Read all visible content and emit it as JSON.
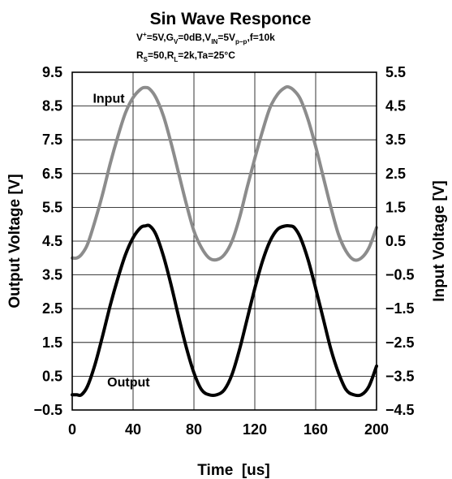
{
  "chart_data": {
    "type": "line",
    "title": "Sin Wave Responce",
    "conditions_line1": {
      "v": "V",
      "v_sup": "+",
      "v_rest": "=5V,G",
      "gv_sub": "V",
      "gv_rest": "=0dB,V",
      "vin_sub": "IN",
      "vin_rest": "=5V",
      "pp_sub": "p−p",
      "tail": ",f=10k"
    },
    "conditions_line2": {
      "r": "R",
      "rs_sub": "S",
      "rs_rest": "=50,R",
      "rl_sub": "L",
      "tail": "=2k,Ta=25°C"
    },
    "xlabel": "Time  [us]",
    "ylabel_left": "Output Voltage [V]",
    "ylabel_right": "Input Voltage [V]",
    "xlim": [
      0,
      200
    ],
    "ylim_left": [
      -0.5,
      9.5
    ],
    "ylim_right": [
      -4.5,
      5.5
    ],
    "x_ticks": [
      "0",
      "40",
      "80",
      "120",
      "160",
      "200"
    ],
    "y_ticks_left": [
      "9.5",
      "8.5",
      "7.5",
      "6.5",
      "5.5",
      "4.5",
      "3.5",
      "2.5",
      "1.5",
      "0.5",
      "−0.5"
    ],
    "y_ticks_right": [
      "5.5",
      "4.5",
      "3.5",
      "2.5",
      "1.5",
      "0.5",
      "−0.5",
      "−1.5",
      "−2.5",
      "−3.5",
      "−4.5"
    ],
    "grid": true,
    "series": [
      {
        "name": "Input",
        "axis": "left",
        "color": "#8c8c8c",
        "x": [
          0,
          3,
          6,
          10,
          15,
          20,
          25,
          30,
          35,
          40,
          45,
          48,
          51,
          55,
          60,
          65,
          70,
          75,
          80,
          85,
          90,
          95,
          100,
          105,
          110,
          115,
          120,
          125,
          130,
          135,
          140,
          143,
          146,
          150,
          155,
          160,
          165,
          170,
          175,
          180,
          185,
          190,
          195,
          200
        ],
        "values": [
          4.0,
          4.0,
          4.1,
          4.4,
          5.1,
          5.9,
          6.8,
          7.6,
          8.3,
          8.75,
          9.0,
          9.05,
          9.0,
          8.75,
          8.2,
          7.4,
          6.5,
          5.6,
          4.8,
          4.3,
          4.0,
          3.95,
          4.1,
          4.5,
          5.2,
          6.1,
          6.95,
          7.75,
          8.45,
          8.85,
          9.05,
          9.05,
          8.95,
          8.7,
          8.1,
          7.3,
          6.4,
          5.5,
          4.7,
          4.2,
          3.95,
          4.0,
          4.3,
          4.9
        ]
      },
      {
        "name": "Output",
        "axis": "left",
        "color": "#000000",
        "x": [
          0,
          3,
          6,
          10,
          15,
          20,
          25,
          30,
          35,
          40,
          45,
          48,
          51,
          55,
          60,
          65,
          70,
          75,
          80,
          85,
          90,
          95,
          100,
          105,
          110,
          115,
          120,
          125,
          130,
          135,
          140,
          143,
          146,
          150,
          155,
          160,
          165,
          170,
          175,
          180,
          185,
          190,
          195,
          200
        ],
        "values": [
          -0.05,
          -0.05,
          -0.05,
          0.2,
          0.85,
          1.7,
          2.6,
          3.4,
          4.1,
          4.6,
          4.9,
          4.95,
          4.95,
          4.7,
          4.05,
          3.2,
          2.25,
          1.35,
          0.6,
          0.1,
          -0.05,
          -0.05,
          0.1,
          0.55,
          1.3,
          2.2,
          3.1,
          3.9,
          4.5,
          4.85,
          4.95,
          4.95,
          4.9,
          4.6,
          3.95,
          3.1,
          2.2,
          1.3,
          0.6,
          0.1,
          -0.05,
          -0.05,
          0.2,
          0.8
        ]
      }
    ],
    "annotations": [
      {
        "text": "Input",
        "x": 24,
        "y": 8.6
      },
      {
        "text": "Output",
        "x": 37,
        "y": 0.2
      }
    ]
  }
}
